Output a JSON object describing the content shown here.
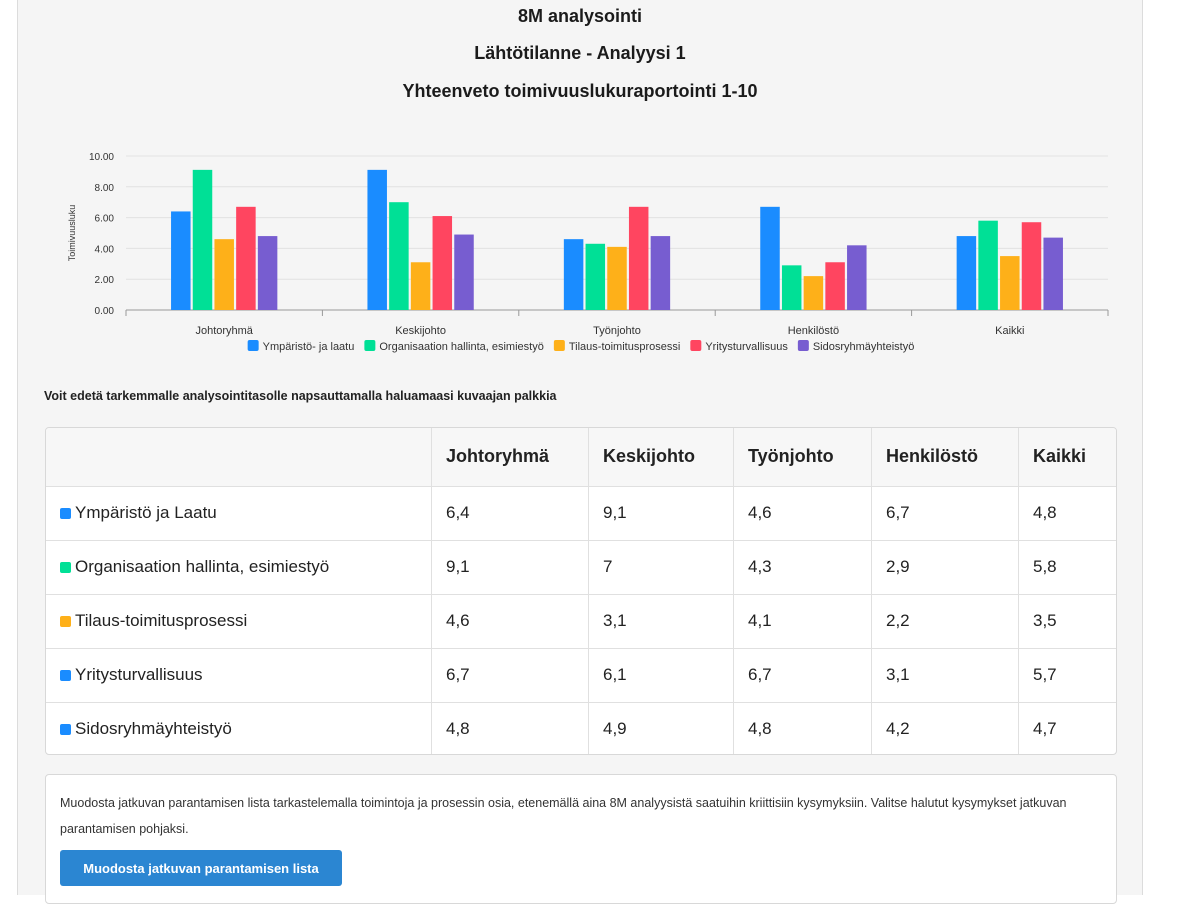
{
  "header": {
    "title": "8M analysointi",
    "subtitle": "Lähtötilanne - Analyysi 1",
    "chart_title": "Yhteenveto toimivuuslukuraportointi 1-10"
  },
  "chart_data": {
    "type": "bar",
    "title": "Yhteenveto toimivuuslukuraportointi 1-10",
    "xlabel": "",
    "ylabel": "Toimivuusluku",
    "ylim": [
      0,
      10
    ],
    "yticks": [
      "0.00",
      "2.00",
      "4.00",
      "6.00",
      "8.00",
      "10.00"
    ],
    "grid": true,
    "legend_position": "bottom",
    "categories": [
      "Johtoryhmä",
      "Keskijohto",
      "Työnjohto",
      "Henkilöstö",
      "Kaikki"
    ],
    "series": [
      {
        "name": "Ympäristö- ja laatu",
        "color": "#1a8cff",
        "values": [
          6.4,
          9.1,
          4.6,
          6.7,
          4.8
        ]
      },
      {
        "name": "Organisaation hallinta, esimiestyö",
        "color": "#00e096",
        "values": [
          9.1,
          7,
          4.3,
          2.9,
          5.8
        ]
      },
      {
        "name": "Tilaus-toimitusprosessi",
        "color": "#feb019",
        "values": [
          4.6,
          3.1,
          4.1,
          2.2,
          3.5
        ]
      },
      {
        "name": "Yritysturvallisuus",
        "color": "#ff4560",
        "values": [
          6.7,
          6.1,
          6.7,
          3.1,
          5.7
        ]
      },
      {
        "name": "Sidosryhmäyhteistyö",
        "color": "#775dd0",
        "values": [
          4.8,
          4.9,
          4.8,
          4.2,
          4.7
        ]
      }
    ]
  },
  "hint_text": "Voit edetä tarkemmalle analysointitasolle napsauttamalla haluamaasi kuvaajan palkkia",
  "table": {
    "headers": [
      "",
      "Johtoryhmä",
      "Keskijohto",
      "Työnjohto",
      "Henkilöstö",
      "Kaikki"
    ],
    "rows": [
      {
        "label": "Ympäristö ja Laatu",
        "color": "#1a8cff",
        "values": [
          "6,4",
          "9,1",
          "4,6",
          "6,7",
          "4,8"
        ]
      },
      {
        "label": "Organisaation hallinta, esimiestyö",
        "color": "#00e096",
        "values": [
          "9,1",
          "7",
          "4,3",
          "2,9",
          "5,8"
        ]
      },
      {
        "label": "Tilaus-toimitusprosessi",
        "color": "#feb019",
        "values": [
          "4,6",
          "3,1",
          "4,1",
          "2,2",
          "3,5"
        ]
      },
      {
        "label": "Yritysturvallisuus",
        "color": "#1a8cff",
        "values": [
          "6,7",
          "6,1",
          "6,7",
          "3,1",
          "5,7"
        ]
      },
      {
        "label": "Sidosryhmäyhteistyö",
        "color": "#1a8cff",
        "values": [
          "4,8",
          "4,9",
          "4,8",
          "4,2",
          "4,7"
        ]
      }
    ]
  },
  "info": {
    "text": "Muodosta jatkuvan parantamisen lista tarkastelemalla toimintoja ja prosessin osia, etenemällä aina 8M analyysistä saatuihin kriittisiin kysymyksiin. Valitse halutut kysymykset jatkuvan parantamisen pohjaksi.",
    "button_label": "Muodosta jatkuvan parantamisen lista"
  }
}
